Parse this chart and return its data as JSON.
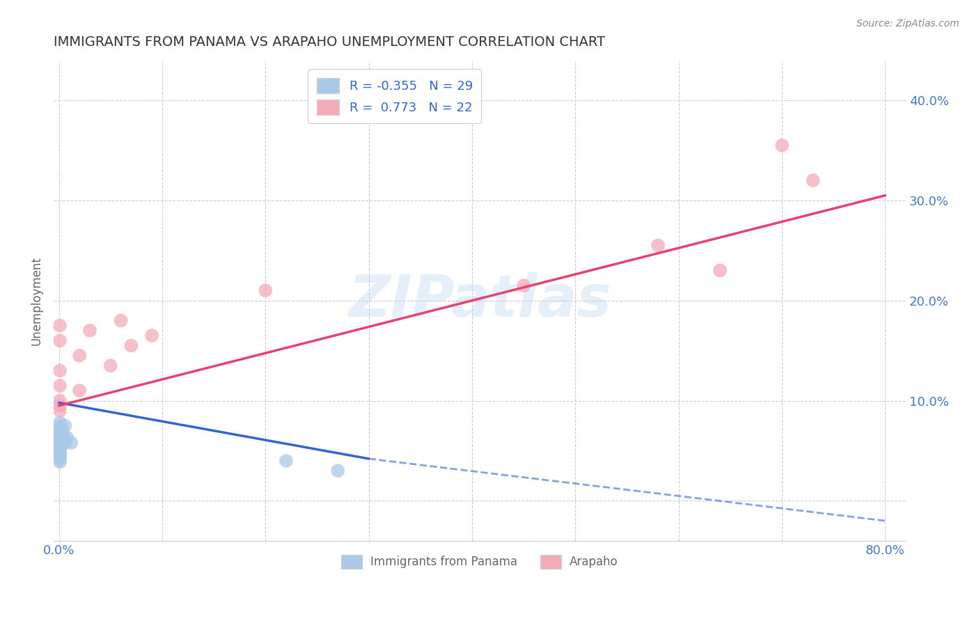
{
  "title": "IMMIGRANTS FROM PANAMA VS ARAPAHO UNEMPLOYMENT CORRELATION CHART",
  "source": "Source: ZipAtlas.com",
  "ylabel": "Unemployment",
  "xlim": [
    -0.005,
    0.82
  ],
  "ylim": [
    -0.04,
    0.44
  ],
  "xticks": [
    0.0,
    0.1,
    0.2,
    0.3,
    0.4,
    0.5,
    0.6,
    0.7,
    0.8
  ],
  "xticklabels": [
    "0.0%",
    "",
    "",
    "",
    "",
    "",
    "",
    "",
    "80.0%"
  ],
  "yticks": [
    0.0,
    0.1,
    0.2,
    0.3,
    0.4
  ],
  "yticklabels": [
    "",
    "10.0%",
    "20.0%",
    "30.0%",
    "40.0%"
  ],
  "watermark": "ZIPatlas",
  "blue_color": "#aac8e8",
  "pink_color": "#f5aab8",
  "blue_line_color": "#3366cc",
  "pink_line_color": "#e84070",
  "title_color": "#333333",
  "axis_label_color": "#666666",
  "tick_color": "#4477cc",
  "source_color": "#888888",
  "grid_color": "#cccccc",
  "blue_scatter": [
    [
      0.001,
      0.078
    ],
    [
      0.001,
      0.074
    ],
    [
      0.001,
      0.071
    ],
    [
      0.001,
      0.068
    ],
    [
      0.001,
      0.065
    ],
    [
      0.001,
      0.062
    ],
    [
      0.001,
      0.06
    ],
    [
      0.001,
      0.057
    ],
    [
      0.001,
      0.056
    ],
    [
      0.001,
      0.055
    ],
    [
      0.001,
      0.054
    ],
    [
      0.001,
      0.052
    ],
    [
      0.001,
      0.05
    ],
    [
      0.001,
      0.048
    ],
    [
      0.001,
      0.046
    ],
    [
      0.001,
      0.044
    ],
    [
      0.001,
      0.042
    ],
    [
      0.001,
      0.039
    ],
    [
      0.002,
      0.065
    ],
    [
      0.003,
      0.072
    ],
    [
      0.004,
      0.068
    ],
    [
      0.004,
      0.062
    ],
    [
      0.005,
      0.06
    ],
    [
      0.006,
      0.075
    ],
    [
      0.006,
      0.058
    ],
    [
      0.008,
      0.063
    ],
    [
      0.012,
      0.058
    ],
    [
      0.22,
      0.04
    ],
    [
      0.27,
      0.03
    ]
  ],
  "pink_scatter": [
    [
      0.001,
      0.175
    ],
    [
      0.001,
      0.16
    ],
    [
      0.001,
      0.13
    ],
    [
      0.001,
      0.115
    ],
    [
      0.001,
      0.1
    ],
    [
      0.001,
      0.095
    ],
    [
      0.001,
      0.09
    ],
    [
      0.02,
      0.145
    ],
    [
      0.02,
      0.11
    ],
    [
      0.03,
      0.17
    ],
    [
      0.05,
      0.135
    ],
    [
      0.06,
      0.18
    ],
    [
      0.07,
      0.155
    ],
    [
      0.09,
      0.165
    ],
    [
      0.2,
      0.21
    ],
    [
      0.45,
      0.215
    ],
    [
      0.58,
      0.255
    ],
    [
      0.64,
      0.23
    ],
    [
      0.7,
      0.355
    ],
    [
      0.73,
      0.32
    ]
  ],
  "blue_trendline_solid": [
    [
      0.0,
      0.098
    ],
    [
      0.3,
      0.042
    ]
  ],
  "blue_trendline_dashed": [
    [
      0.3,
      0.042
    ],
    [
      0.8,
      -0.02
    ]
  ],
  "pink_trendline": [
    [
      0.0,
      0.095
    ],
    [
      0.8,
      0.305
    ]
  ],
  "legend_label_blue": "Immigrants from Panama",
  "legend_label_pink": "Arapaho"
}
